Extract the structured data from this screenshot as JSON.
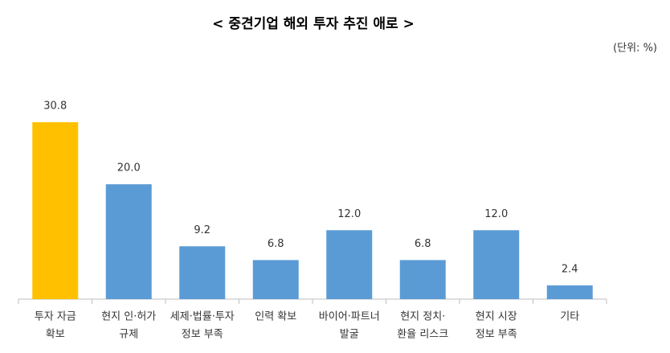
{
  "chart_data": {
    "type": "bar",
    "title": "< 중견기업 해외 투자 추진 애로 >",
    "unit_label": "(단위: %)",
    "categories": [
      [
        "투자 자금",
        "확보"
      ],
      [
        "현지 인·허가",
        "규제"
      ],
      [
        "세제·법률·투자",
        "정보 부족"
      ],
      [
        "인력 확보"
      ],
      [
        "바이어·파트너",
        "발굴"
      ],
      [
        "현지 정치·",
        "환율 리스크"
      ],
      [
        "현지 시장",
        "정보 부족"
      ],
      [
        "기타"
      ]
    ],
    "values": [
      30.8,
      20,
      9.2,
      6.8,
      12,
      6.8,
      12,
      2.4
    ],
    "value_labels": [
      "30.8",
      "20.0",
      "9.2",
      "6.8",
      "12.0",
      "6.8",
      "12.0",
      "2.4"
    ],
    "colors": [
      "#ffc000",
      "#5b9bd5",
      "#5b9bd5",
      "#5b9bd5",
      "#5b9bd5",
      "#5b9bd5",
      "#5b9bd5",
      "#5b9bd5"
    ],
    "ylim": [
      0,
      35
    ]
  }
}
